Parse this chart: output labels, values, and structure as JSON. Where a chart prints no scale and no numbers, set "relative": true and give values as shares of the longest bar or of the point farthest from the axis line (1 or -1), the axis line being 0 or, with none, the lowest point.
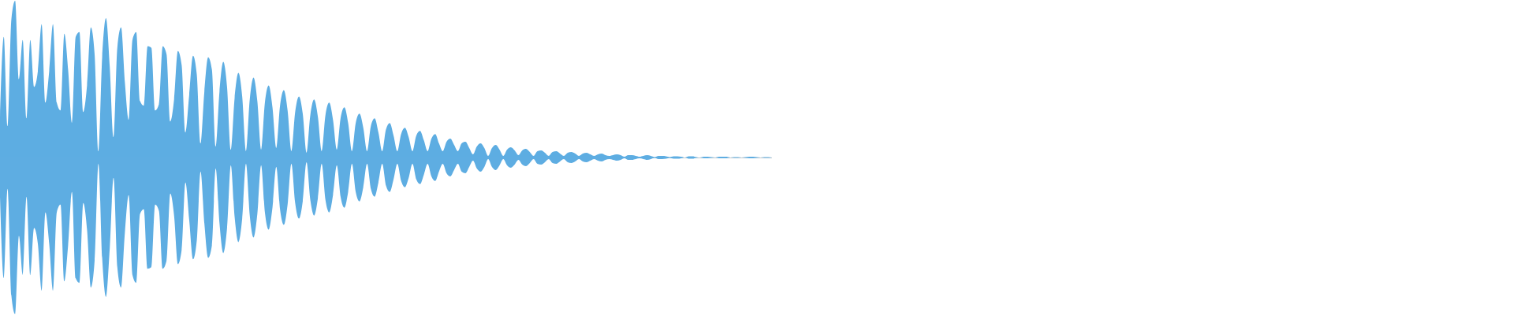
{
  "chart_data": {
    "type": "area",
    "relative": true,
    "categories": [
      null,
      null,
      null,
      null,
      null,
      null,
      null,
      null,
      null,
      null,
      null,
      null,
      null,
      null,
      null,
      null,
      null,
      null,
      null,
      null,
      null,
      null,
      null,
      null,
      null,
      null,
      null,
      null,
      null,
      null,
      null,
      null,
      null,
      null,
      null,
      null,
      null,
      null,
      null,
      null,
      null,
      null,
      null,
      null,
      null,
      null,
      null,
      null,
      null,
      null,
      null,
      null,
      null,
      null,
      null,
      null,
      null,
      null,
      null,
      null,
      null,
      null,
      null,
      null,
      null,
      null,
      null,
      null,
      null,
      null,
      null,
      null,
      null,
      null,
      null,
      null,
      null,
      null,
      null,
      null,
      null,
      null,
      null,
      null,
      null,
      null,
      null,
      null,
      null,
      null,
      null,
      null,
      null,
      null,
      null,
      null,
      null,
      null,
      null,
      null,
      null,
      null,
      null,
      null,
      null,
      null,
      null,
      null,
      null,
      null,
      null,
      null,
      null,
      null,
      null,
      null,
      null,
      null,
      null,
      null,
      null,
      null,
      null,
      null,
      null,
      null,
      null,
      null,
      null,
      null,
      null,
      null,
      null,
      null,
      null,
      null,
      null,
      null,
      null,
      null,
      null,
      null,
      null,
      null,
      null,
      null,
      null,
      null,
      null,
      null,
      null,
      null,
      null,
      null,
      null,
      null,
      null,
      null,
      null,
      null,
      null,
      null,
      null,
      null,
      null,
      null,
      null,
      null,
      null,
      null,
      null,
      null,
      null,
      null,
      null,
      null,
      null,
      null,
      null,
      null,
      null,
      null,
      null,
      null,
      null,
      null,
      null,
      null,
      null,
      null,
      null,
      null,
      null,
      null,
      null,
      null,
      null,
      null,
      null,
      null,
      null,
      null,
      null,
      null,
      null
    ],
    "series": [
      {
        "color": "#5dade2",
        "values": [
          0.25,
          0.77,
          0.2,
          0.88,
          1,
          0.5,
          0.75,
          0.25,
          0.75,
          0.45,
          0.55,
          0.85,
          0.35,
          0.55,
          0.85,
          0.35,
          0.3,
          0.79,
          0.56,
          0.22,
          0.77,
          0.8,
          0.29,
          0.46,
          0.83,
          0.66,
          0.04,
          0.64,
          0.89,
          0.58,
          0.13,
          0.7,
          0.83,
          0.48,
          0.24,
          0.75,
          0.8,
          0.36,
          0.33,
          0.71,
          0.7,
          0.3,
          0.34,
          0.71,
          0.66,
          0.23,
          0.37,
          0.68,
          0.59,
          0.16,
          0.4,
          0.65,
          0.53,
          0.09,
          0.42,
          0.64,
          0.56,
          0.07,
          0.42,
          0.61,
          0.45,
          0.05,
          0.38,
          0.54,
          0.39,
          0.04,
          0.37,
          0.51,
          0.36,
          0.05,
          0.35,
          0.46,
          0.32,
          0.06,
          0.33,
          0.43,
          0.3,
          0.04,
          0.29,
          0.39,
          0.28,
          0.03,
          0.27,
          0.37,
          0.26,
          0.04,
          0.27,
          0.35,
          0.24,
          0.05,
          0.25,
          0.32,
          0.22,
          0.04,
          0.22,
          0.28,
          0.19,
          0.04,
          0.2,
          0.25,
          0.16,
          0.04,
          0.18,
          0.22,
          0.14,
          0.04,
          0.15,
          0.19,
          0.13,
          0.04,
          0.14,
          0.17,
          0.11,
          0.04,
          0.12,
          0.15,
          0.09,
          0.04,
          0.1,
          0.12,
          0.08,
          0.04,
          0.09,
          0.1,
          0.06,
          0.02,
          0.07,
          0.09,
          0.06,
          0.01,
          0.06,
          0.08,
          0.05,
          0.01,
          0.05,
          0.065,
          0.045,
          0.015,
          0.045,
          0.055,
          0.035,
          0.01,
          0.04,
          0.045,
          0.03,
          0.01,
          0.035,
          0.04,
          0.025,
          0.01,
          0.03,
          0.035,
          0.025,
          0.01,
          0.025,
          0.03,
          0.02,
          0.01,
          0.02,
          0.025,
          0.015,
          0.01,
          0.015,
          0.02,
          0.015,
          0.005,
          0.015,
          0.015,
          0.01,
          0.005,
          0.01,
          0.015,
          0.01,
          0.003,
          0.01,
          0.01,
          0.008,
          0.003,
          0.008,
          0.008,
          0.005,
          0,
          0.008,
          0.008,
          0.003,
          0,
          0.005,
          0.005,
          0.003,
          0,
          0.005,
          0.005,
          0.005,
          0,
          0.003,
          0.003,
          0,
          0.003,
          0.005,
          0.005,
          0.003,
          0,
          0.003,
          0.003,
          0
        ]
      },
      {
        "color": "#5eade2",
        "values": [
          -0.25,
          -0.77,
          -0.2,
          -0.88,
          -1,
          -0.5,
          -0.75,
          -0.25,
          -0.75,
          -0.45,
          -0.55,
          -0.85,
          -0.35,
          -0.55,
          -0.85,
          -0.35,
          -0.3,
          -0.79,
          -0.56,
          -0.22,
          -0.77,
          -0.8,
          -0.29,
          -0.46,
          -0.83,
          -0.66,
          -0.04,
          -0.64,
          -0.89,
          -0.58,
          -0.13,
          -0.7,
          -0.83,
          -0.48,
          -0.24,
          -0.75,
          -0.8,
          -0.36,
          -0.33,
          -0.71,
          -0.7,
          -0.3,
          -0.34,
          -0.71,
          -0.66,
          -0.23,
          -0.37,
          -0.68,
          -0.59,
          -0.16,
          -0.4,
          -0.65,
          -0.53,
          -0.09,
          -0.42,
          -0.64,
          -0.56,
          -0.07,
          -0.42,
          -0.61,
          -0.45,
          -0.05,
          -0.38,
          -0.54,
          -0.39,
          -0.04,
          -0.37,
          -0.51,
          -0.36,
          -0.05,
          -0.35,
          -0.46,
          -0.32,
          -0.06,
          -0.33,
          -0.43,
          -0.3,
          -0.04,
          -0.29,
          -0.39,
          -0.28,
          -0.03,
          -0.27,
          -0.37,
          -0.26,
          -0.04,
          -0.27,
          -0.35,
          -0.24,
          -0.05,
          -0.25,
          -0.32,
          -0.22,
          -0.04,
          -0.22,
          -0.28,
          -0.19,
          -0.04,
          -0.2,
          -0.25,
          -0.16,
          -0.04,
          -0.18,
          -0.22,
          -0.14,
          -0.04,
          -0.15,
          -0.19,
          -0.13,
          -0.04,
          -0.14,
          -0.17,
          -0.11,
          -0.04,
          -0.12,
          -0.15,
          -0.09,
          -0.04,
          -0.1,
          -0.12,
          -0.08,
          -0.04,
          -0.09,
          -0.1,
          -0.06,
          -0.02,
          -0.07,
          -0.09,
          -0.06,
          -0.01,
          -0.06,
          -0.08,
          -0.05,
          -0.01,
          -0.05,
          -0.065,
          -0.045,
          -0.015,
          -0.045,
          -0.055,
          -0.035,
          -0.01,
          -0.04,
          -0.045,
          -0.03,
          -0.01,
          -0.035,
          -0.04,
          -0.025,
          -0.01,
          -0.03,
          -0.035,
          -0.025,
          -0.01,
          -0.025,
          -0.03,
          -0.02,
          -0.01,
          -0.02,
          -0.025,
          -0.015,
          -0.01,
          -0.015,
          -0.02,
          -0.015,
          -0.005,
          -0.015,
          -0.015,
          -0.01,
          -0.005,
          -0.01,
          -0.015,
          -0.01,
          -0.003,
          -0.01,
          -0.01,
          -0.008,
          -0.003,
          -0.008,
          -0.008,
          -0.005,
          0,
          -0.008,
          -0.008,
          -0.003,
          0,
          -0.005,
          -0.005,
          -0.003,
          0,
          -0.005,
          -0.005,
          -0.005,
          0,
          -0.003,
          -0.003,
          0,
          -0.003,
          -0.005,
          -0.005,
          -0.003,
          0,
          -0.003,
          -0.003,
          0
        ]
      }
    ]
  }
}
